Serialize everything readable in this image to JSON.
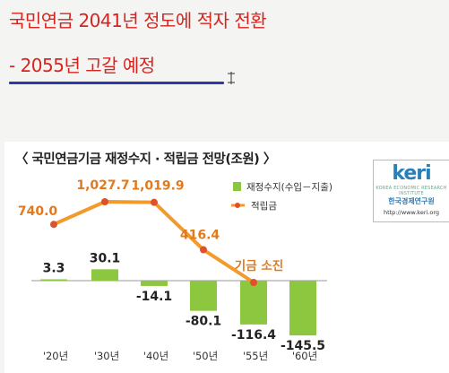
{
  "slide": {
    "title_line1": "국민연금 2041년 정도에 적자 전환",
    "title_line2": "- 2055년 고갈 예정",
    "accent_color": "#d8231f",
    "underline_color": "#2b3aa8"
  },
  "logo": {
    "wordmark": "keri",
    "english_name": "KOREA ECONOMIC RESEARCH INSTITUTE",
    "korean_name": "한국경제연구원",
    "url": "http://www.keri.org"
  },
  "chart_data": {
    "type": "bar+line",
    "title": "〈 국민연금기금 재정수지 · 적립금 전망(조원) 〉",
    "categories": [
      "'20년",
      "'30년",
      "'40년",
      "'50년",
      "'55년",
      "'60년"
    ],
    "series": [
      {
        "name": "재정수지(수입－지출)",
        "type": "bar",
        "color": "#8dc63f",
        "values": [
          3.3,
          30.1,
          -14.1,
          -80.1,
          -116.4,
          -145.5
        ],
        "labels": [
          "3.3",
          "30.1",
          "-14.1",
          "-80.1",
          "-116.4",
          "-145.5"
        ]
      },
      {
        "name": "적립금",
        "type": "line",
        "color": "#f39a2d",
        "marker_color": "#e0502a",
        "values": [
          740.0,
          1027.7,
          1019.9,
          416.4,
          0,
          null
        ],
        "labels": [
          "740.0",
          "1,027.7",
          "1,019.9",
          "416.4",
          "",
          ""
        ]
      }
    ],
    "annotation": {
      "text": "기금 소진",
      "category": "'55년",
      "color": "#e07a1f"
    },
    "legend_position": "top-right",
    "grid": false
  }
}
